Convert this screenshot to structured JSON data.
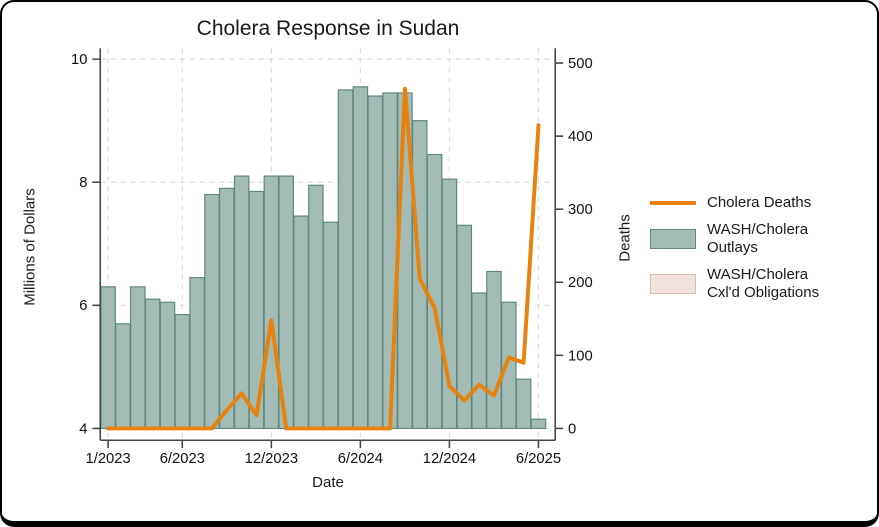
{
  "figure": {
    "title": "Cholera Response in Sudan",
    "x_axis": {
      "title": "Date",
      "tick_labels": [
        "1/2023",
        "6/2023",
        "12/2023",
        "6/2024",
        "12/2024",
        "6/2025"
      ],
      "tick_month_indices": [
        0,
        5,
        11,
        17,
        23,
        29
      ]
    },
    "y_axis_left": {
      "title": "Millions of Dollars",
      "tick_labels": [
        "4",
        "6",
        "8",
        "10"
      ],
      "tick_values": [
        4,
        6,
        8,
        10
      ],
      "range": [
        4,
        10
      ]
    },
    "y_axis_right": {
      "title": "Deaths",
      "tick_labels": [
        "0",
        "100",
        "200",
        "300",
        "400",
        "500"
      ],
      "tick_values": [
        0,
        100,
        200,
        300,
        400,
        500
      ],
      "range": [
        0,
        500
      ]
    },
    "legend": {
      "position": "right-outside",
      "items": [
        {
          "swatch": "line",
          "line1": "Cholera Deaths",
          "line2": ""
        },
        {
          "swatch": "box-green",
          "line1": "WASH/Cholera",
          "line2": "Outlays"
        },
        {
          "swatch": "box-pink",
          "line1": "WASH/Cholera",
          "line2": "Cxl'd Obligations"
        }
      ]
    }
  },
  "colors": {
    "deaths_line": "#E8820C",
    "outlays_bar_fill": "#A3BCB5",
    "outlays_bar_border": "#5E877E",
    "cxld_bar_fill": "#F0E1DD",
    "cxld_bar_border": "#D8BCB6",
    "gridline": "#DBDBDB",
    "axis_spine": "#474747",
    "text": "#111111"
  },
  "chart_data": {
    "type": "bar",
    "subtype": "dual-axis bar + line",
    "title": "Cholera Response in Sudan",
    "xlabel": "Date",
    "ylabel_left": "Millions of Dollars",
    "ylabel_right": "Deaths",
    "ylim_left": [
      4,
      10
    ],
    "ylim_right": [
      0,
      500
    ],
    "grid": "dashed, both axes (horizontal from left axis only)",
    "legend_position": "right outside plot",
    "x": [
      "1/2023",
      "2/2023",
      "3/2023",
      "4/2023",
      "5/2023",
      "6/2023",
      "7/2023",
      "8/2023",
      "9/2023",
      "10/2023",
      "11/2023",
      "12/2023",
      "1/2024",
      "2/2024",
      "3/2024",
      "4/2024",
      "5/2024",
      "6/2024",
      "7/2024",
      "8/2024",
      "9/2024",
      "10/2024",
      "11/2024",
      "12/2024",
      "1/2025",
      "2/2025",
      "3/2025",
      "4/2025",
      "5/2025",
      "6/2025"
    ],
    "series": [
      {
        "name": "WASH/Cholera Outlays",
        "type": "bar",
        "axis": "left",
        "units": "millions of dollars",
        "values": [
          6.3,
          5.7,
          6.3,
          6.1,
          6.05,
          5.85,
          6.45,
          7.8,
          7.9,
          8.1,
          7.85,
          8.1,
          8.1,
          7.45,
          7.95,
          7.35,
          9.5,
          9.55,
          9.4,
          9.45,
          9.45,
          9.0,
          8.45,
          8.05,
          7.3,
          6.2,
          6.55,
          6.05,
          4.8,
          4.15
        ]
      },
      {
        "name": "Cholera Deaths",
        "type": "line",
        "axis": "right",
        "units": "deaths",
        "values": [
          0,
          0,
          0,
          0,
          0,
          0,
          0,
          0,
          25,
          48,
          18,
          148,
          0,
          0,
          0,
          0,
          0,
          0,
          0,
          0,
          465,
          205,
          165,
          58,
          38,
          60,
          45,
          97,
          90,
          415
        ]
      },
      {
        "name": "WASH/Cholera Cxl'd Obligations",
        "type": "bar",
        "axis": "left",
        "units": "millions of dollars",
        "note": "present in legend; no visible bars in plot",
        "values": [
          0,
          0,
          0,
          0,
          0,
          0,
          0,
          0,
          0,
          0,
          0,
          0,
          0,
          0,
          0,
          0,
          0,
          0,
          0,
          0,
          0,
          0,
          0,
          0,
          0,
          0,
          0,
          0,
          0,
          0
        ]
      }
    ]
  }
}
